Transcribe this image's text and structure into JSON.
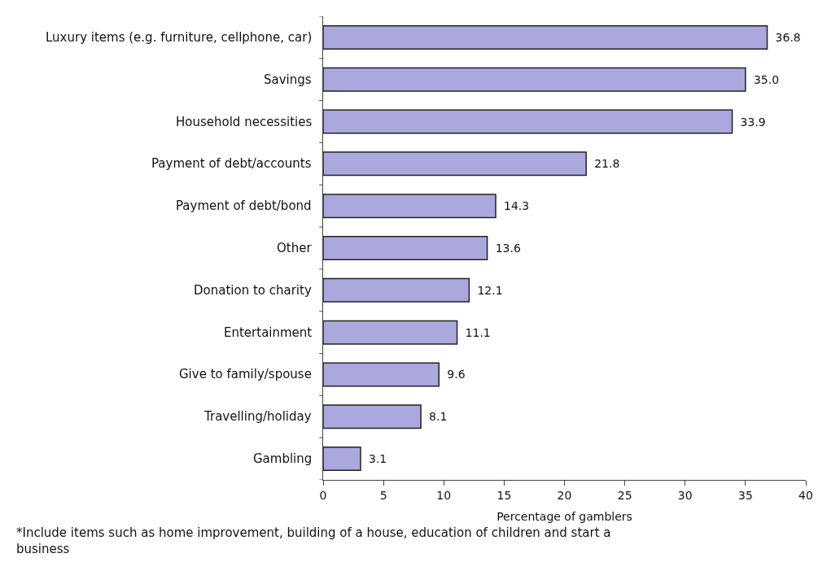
{
  "chart_data": {
    "type": "bar",
    "orientation": "horizontal",
    "categories": [
      "Luxury items (e.g. furniture, cellphone, car)",
      "Savings",
      "Household necessities",
      "Payment of debt/accounts",
      "Payment of debt/bond",
      "Other",
      "Donation to charity",
      "Entertainment",
      "Give to family/spouse",
      "Travelling/holiday",
      "Gambling"
    ],
    "values": [
      36.8,
      35.0,
      33.9,
      21.8,
      14.3,
      13.6,
      12.1,
      11.1,
      9.6,
      8.1,
      3.1
    ],
    "value_labels": [
      "36.8",
      "35.0",
      "33.9",
      "21.8",
      "14.3",
      "13.6",
      "12.1",
      "11.1",
      "9.6",
      "8.1",
      "3.1"
    ],
    "color": "#aaa8dc",
    "xlim": [
      0,
      40
    ],
    "xticks": [
      0,
      5,
      10,
      15,
      20,
      25,
      30,
      35,
      40
    ],
    "xlabel": "Percentage of gamblers",
    "grid": false,
    "annotations": [
      "*Include items such as home improvement, building of a house, education of children and start a business"
    ]
  }
}
